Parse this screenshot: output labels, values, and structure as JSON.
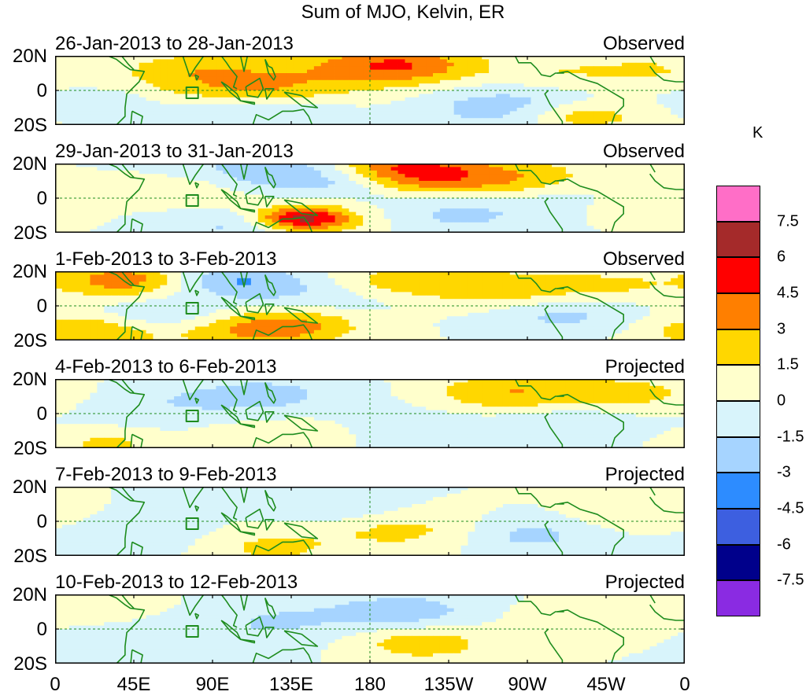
{
  "title": "Sum of MJO, Kelvin, ER",
  "units": "K",
  "lat_labels": [
    "20N",
    "0",
    "20S"
  ],
  "lon_labels": [
    "0",
    "45E",
    "90E",
    "135E",
    "180",
    "135W",
    "90W",
    "45W",
    "0"
  ],
  "panels": [
    {
      "date": "26-Jan-2013 to 28-Jan-2013",
      "type": "Observed"
    },
    {
      "date": "29-Jan-2013 to 31-Jan-2013",
      "type": "Observed"
    },
    {
      "date": "1-Feb-2013 to 3-Feb-2013",
      "type": "Observed"
    },
    {
      "date": "4-Feb-2013 to 6-Feb-2013",
      "type": "Projected"
    },
    {
      "date": "7-Feb-2013 to 9-Feb-2013",
      "type": "Projected"
    },
    {
      "date": "10-Feb-2013 to 12-Feb-2013",
      "type": "Projected"
    }
  ],
  "colorbar": {
    "labels": [
      "7.5",
      "6",
      "4.5",
      "3",
      "1.5",
      "0",
      "-1.5",
      "-3",
      "-4.5",
      "-6",
      "-7.5"
    ],
    "colors": [
      "#ff6ec7",
      "#a52a2a",
      "#ff0000",
      "#ff7f00",
      "#ffd700",
      "#ffffcc",
      "#d8f4fb",
      "#a6d4ff",
      "#2d8cff",
      "#3d5fe0",
      "#00008b",
      "#8a2be2"
    ]
  },
  "coast_color": "#1e8c1e",
  "contour_fields": [
    [
      [
        195,
        15,
        3,
        9
      ],
      [
        200,
        14,
        1.5,
        9
      ],
      [
        100,
        -10,
        -3,
        7
      ],
      [
        145,
        -10,
        -1.5,
        6
      ],
      [
        110,
        -5,
        2.5,
        10
      ],
      [
        120,
        8,
        2,
        12
      ],
      [
        70,
        12,
        1.5,
        8
      ],
      [
        260,
        -10,
        -2.5,
        10
      ],
      [
        300,
        -15,
        3,
        7
      ],
      [
        290,
        10,
        1.5,
        8
      ],
      [
        340,
        12,
        1.5,
        6
      ],
      [
        30,
        -8,
        -1.5,
        6
      ]
    ],
    [
      [
        195,
        15,
        4,
        9
      ],
      [
        200,
        14,
        2,
        9
      ],
      [
        140,
        -12,
        3,
        9
      ],
      [
        140,
        -12,
        5,
        5
      ],
      [
        110,
        -15,
        -3,
        8
      ],
      [
        170,
        10,
        -3,
        8
      ],
      [
        230,
        -8,
        -2,
        10
      ],
      [
        260,
        10,
        3,
        10
      ],
      [
        290,
        0,
        -1.5,
        8
      ],
      [
        120,
        15,
        -2.5,
        10
      ],
      [
        80,
        5,
        1.5,
        8
      ],
      [
        330,
        -5,
        1.5,
        7
      ]
    ],
    [
      [
        40,
        15,
        4,
        8
      ],
      [
        100,
        15,
        -3,
        8
      ],
      [
        195,
        14,
        2.5,
        8
      ],
      [
        20,
        -15,
        3,
        8
      ],
      [
        110,
        -15,
        2.5,
        9
      ],
      [
        140,
        -10,
        2.5,
        8
      ],
      [
        260,
        10,
        2.5,
        9
      ],
      [
        290,
        -5,
        -2,
        8
      ],
      [
        150,
        5,
        -1.5,
        10
      ],
      [
        320,
        12,
        1.5,
        7
      ],
      [
        60,
        -5,
        -2,
        7
      ]
    ],
    [
      [
        260,
        12,
        3,
        9
      ],
      [
        330,
        12,
        2,
        8
      ],
      [
        120,
        10,
        -2,
        10
      ],
      [
        30,
        -18,
        2,
        6
      ],
      [
        200,
        -10,
        -1.5,
        10
      ],
      [
        140,
        -12,
        1.5,
        10
      ],
      [
        290,
        -5,
        -1.5,
        8
      ],
      [
        60,
        5,
        -1,
        9
      ]
    ],
    [
      [
        120,
        -15,
        2,
        9
      ],
      [
        200,
        -5,
        2,
        9
      ],
      [
        270,
        -8,
        -2,
        8
      ],
      [
        60,
        -10,
        -1,
        10
      ],
      [
        330,
        5,
        1.5,
        7
      ],
      [
        160,
        8,
        -1.5,
        8
      ]
    ],
    [
      [
        200,
        10,
        -2.5,
        8
      ],
      [
        210,
        -8,
        2.5,
        8
      ],
      [
        130,
        5,
        -1.5,
        10
      ],
      [
        30,
        15,
        1.5,
        6
      ],
      [
        300,
        5,
        1.5,
        7
      ],
      [
        80,
        -10,
        -1,
        10
      ]
    ]
  ]
}
